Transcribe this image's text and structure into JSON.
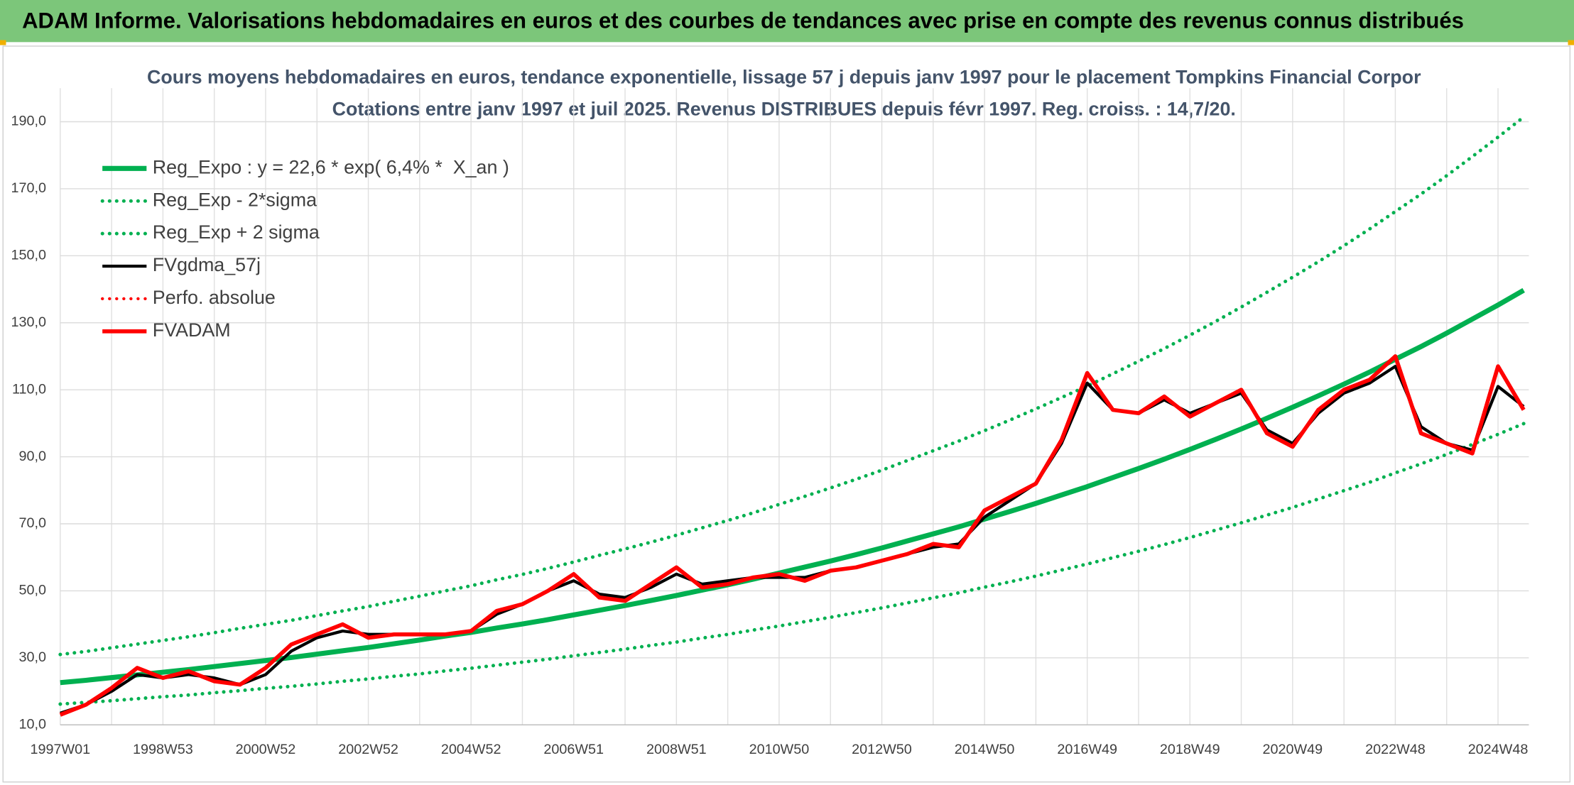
{
  "header": {
    "title": "ADAM Informe. Valorisations hebdomadaires en euros et des courbes de tendances avec prise en compte des revenus connus distribués"
  },
  "chart_data": {
    "type": "line",
    "title": "Cours moyens hebdomadaires en euros, tendance exponentielle, lissage 57 j depuis janv 1997 pour le placement Tompkins Financial Corpor",
    "subtitle": "Cotations entre janv 1997 et juil 2025. Revenus DISTRIBUES depuis févr 1997. Reg. croiss. : 14,7/20.",
    "categories": [
      "1997W01",
      null,
      null,
      null,
      "1998W53",
      null,
      null,
      null,
      "2000W52",
      null,
      null,
      null,
      "2002W52",
      null,
      null,
      null,
      "2004W52",
      null,
      null,
      null,
      "2006W51",
      null,
      null,
      null,
      "2008W51",
      null,
      null,
      null,
      "2010W50",
      null,
      null,
      null,
      "2012W50",
      null,
      null,
      null,
      "2014W50",
      null,
      null,
      null,
      "2016W49",
      null,
      null,
      null,
      "2018W49",
      null,
      null,
      null,
      "2020W49",
      null,
      null,
      null,
      "2022W48",
      null,
      null,
      null,
      "2024W48",
      null
    ],
    "ylim": [
      10,
      200
    ],
    "yticks": [
      {
        "value": 10,
        "label": "10,0"
      },
      {
        "value": 30,
        "label": "30,0"
      },
      {
        "value": 50,
        "label": "50,0"
      },
      {
        "value": 70,
        "label": "70,0"
      },
      {
        "value": 90,
        "label": "90,0"
      },
      {
        "value": 110,
        "label": "110,0"
      },
      {
        "value": 130,
        "label": "130,0"
      },
      {
        "value": 150,
        "label": "150,0"
      },
      {
        "value": 170,
        "label": "170,0"
      },
      {
        "value": 190,
        "label": "190,0"
      }
    ],
    "grid": true,
    "legend": "top-left",
    "series": [
      {
        "name": "Reg_Expo : y = 22,6 * exp( 6,4% *  X_an )",
        "color": "#00b050",
        "dotted": false,
        "values": [
          22.6,
          23.3,
          24.1,
          24.9,
          25.7,
          26.5,
          27.4,
          28.3,
          29.2,
          30.1,
          31.1,
          32.1,
          33.1,
          34.2,
          35.3,
          36.5,
          37.6,
          38.9,
          40.1,
          41.4,
          42.8,
          44.2,
          45.6,
          47.1,
          48.6,
          50.2,
          51.8,
          53.5,
          55.3,
          57.1,
          58.9,
          60.8,
          62.8,
          64.9,
          67.0,
          69.1,
          71.4,
          73.7,
          76.1,
          78.6,
          81.1,
          83.8,
          86.5,
          89.3,
          92.2,
          95.2,
          98.3,
          101.5,
          104.8,
          108.2,
          111.7,
          115.3,
          119.1,
          122.9,
          126.9,
          131.1,
          135.3,
          139.7
        ]
      },
      {
        "name": "Reg_Exp - 2*sigma",
        "color": "#00b050",
        "dotted": true,
        "values": [
          16.2,
          16.7,
          17.2,
          17.8,
          18.4,
          18.9,
          19.6,
          20.2,
          20.9,
          21.5,
          22.2,
          23.0,
          23.7,
          24.5,
          25.2,
          26.1,
          26.9,
          27.8,
          28.7,
          29.6,
          30.6,
          31.6,
          32.6,
          33.7,
          34.7,
          35.9,
          37.0,
          38.3,
          39.5,
          40.8,
          42.1,
          43.5,
          44.9,
          46.4,
          47.9,
          49.4,
          51.1,
          52.7,
          54.4,
          56.2,
          58.0,
          59.9,
          61.8,
          63.8,
          65.9,
          68.1,
          70.3,
          72.6,
          74.9,
          77.4,
          79.9,
          82.4,
          85.2,
          87.9,
          90.7,
          93.7,
          96.7,
          99.9
        ]
      },
      {
        "name": "Reg_Exp + 2 sigma",
        "color": "#00b050",
        "dotted": true,
        "values": [
          31.0,
          31.9,
          33.0,
          34.1,
          35.2,
          36.3,
          37.5,
          38.8,
          40.0,
          41.2,
          42.6,
          44.0,
          45.3,
          46.9,
          48.4,
          50.0,
          51.5,
          53.3,
          54.9,
          56.7,
          58.6,
          60.6,
          62.5,
          64.5,
          66.6,
          68.8,
          71.0,
          73.3,
          75.8,
          78.2,
          80.7,
          83.3,
          86.0,
          88.9,
          91.8,
          94.7,
          97.8,
          101.0,
          104.3,
          107.7,
          111.1,
          114.8,
          118.5,
          122.3,
          126.3,
          130.4,
          134.7,
          139.1,
          143.6,
          148.2,
          153.0,
          158.0,
          163.2,
          168.4,
          173.9,
          179.6,
          185.4,
          191.4
        ]
      },
      {
        "name": "FVgdma_57j",
        "color": "#000000",
        "dotted": false,
        "values": [
          13.5,
          16,
          20,
          25,
          24,
          25,
          24,
          22,
          25,
          32,
          36,
          38,
          37,
          37,
          37,
          37,
          38,
          43,
          46,
          50,
          53,
          49,
          48,
          51,
          55,
          52,
          53,
          54,
          54,
          54,
          56,
          57,
          59,
          61,
          63,
          64,
          72,
          77,
          82,
          94,
          112,
          104,
          103,
          107,
          103,
          106,
          109,
          98,
          94,
          103,
          109,
          112,
          117,
          99,
          94,
          92,
          111,
          105
        ]
      },
      {
        "name": "Perfo. absolue",
        "color": "#ff0000",
        "dotted": true,
        "values": [
          null,
          null,
          null,
          null,
          null,
          null,
          null,
          null,
          null,
          null,
          null,
          null,
          null,
          null,
          null,
          null,
          null,
          null,
          null,
          null,
          null,
          null,
          null,
          null,
          null,
          null,
          null,
          null,
          null,
          null,
          null,
          null,
          null,
          null,
          null,
          null,
          null,
          null,
          null,
          null,
          null,
          null,
          null,
          null,
          null,
          null,
          null,
          null,
          null,
          null,
          null,
          null,
          null,
          null,
          null,
          null,
          null,
          null
        ]
      },
      {
        "name": "FVADAM",
        "color": "#ff0000",
        "dotted": false,
        "values": [
          13,
          16,
          21,
          27,
          24,
          26,
          23,
          22,
          27,
          34,
          37,
          40,
          36,
          37,
          37,
          37,
          38,
          44,
          46,
          50,
          55,
          48,
          47,
          52,
          57,
          51,
          52,
          54,
          55,
          53,
          56,
          57,
          59,
          61,
          64,
          63,
          74,
          78,
          82,
          95,
          115,
          104,
          103,
          108,
          102,
          106,
          110,
          97,
          93,
          104,
          110,
          113,
          120,
          97,
          94,
          91,
          117,
          104
        ]
      }
    ]
  }
}
